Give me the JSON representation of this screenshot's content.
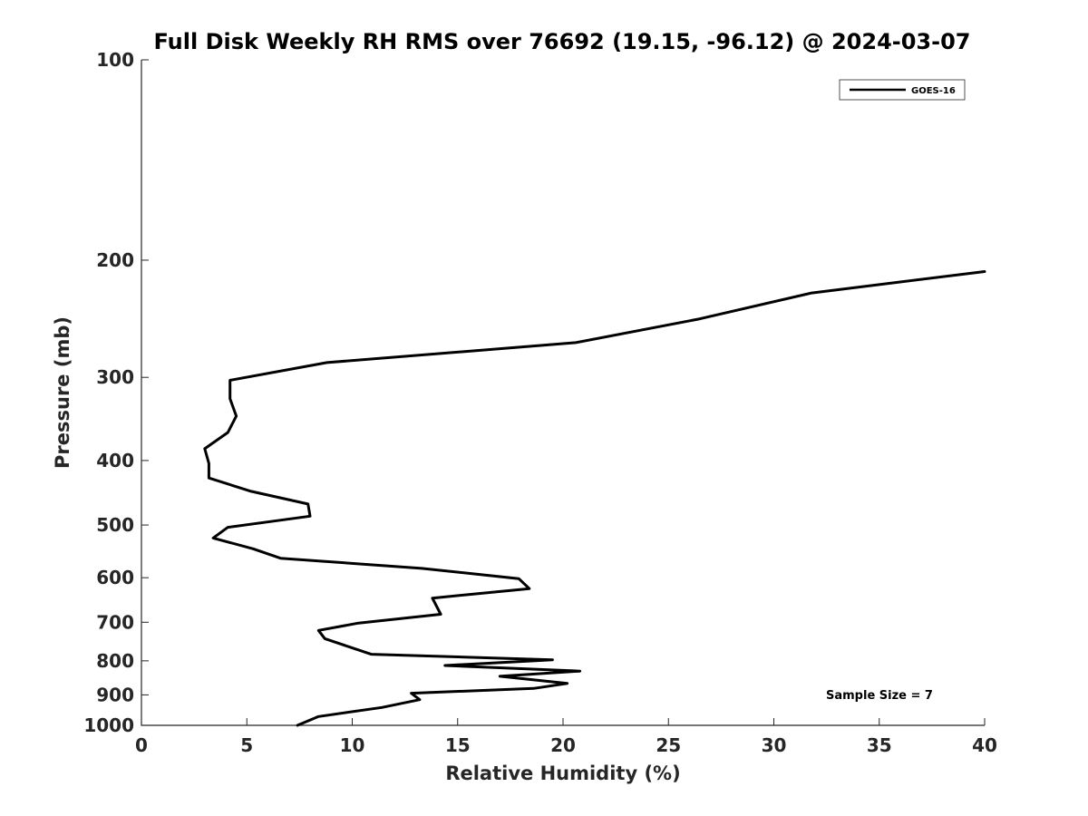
{
  "chart_data": {
    "type": "line",
    "title": "Full Disk Weekly RH RMS over 76692 (19.15, -96.12) @ 2024-03-07",
    "xlabel": "Relative Humidity (%)",
    "ylabel": "Pressure (mb)",
    "xlim": [
      0,
      40
    ],
    "ylim": [
      100,
      1000
    ],
    "y_scale": "log",
    "y_reversed": true,
    "grid": false,
    "x_ticks": [
      "0",
      "5",
      "10",
      "15",
      "20",
      "25",
      "30",
      "35",
      "40"
    ],
    "y_ticks": [
      "100",
      "200",
      "300",
      "400",
      "500",
      "600",
      "700",
      "800",
      "900",
      "1000"
    ],
    "legend": {
      "position": "top-right",
      "entries": [
        "GOES-16"
      ]
    },
    "annotation": "Sample Size = 7",
    "series": [
      {
        "name": "GOES-16",
        "color": "#000000",
        "points": [
          [
            40.0,
            208
          ],
          [
            31.8,
            224
          ],
          [
            26.5,
            245
          ],
          [
            20.6,
            266
          ],
          [
            8.8,
            285
          ],
          [
            4.2,
            303
          ],
          [
            4.2,
            323
          ],
          [
            4.5,
            343
          ],
          [
            4.1,
            363
          ],
          [
            3.0,
            384
          ],
          [
            3.2,
            404
          ],
          [
            3.2,
            425
          ],
          [
            5.2,
            445
          ],
          [
            7.9,
            465
          ],
          [
            8.0,
            485
          ],
          [
            4.1,
            504
          ],
          [
            3.4,
            523
          ],
          [
            5.3,
            543
          ],
          [
            6.6,
            561
          ],
          [
            13.3,
            581
          ],
          [
            17.9,
            602
          ],
          [
            18.4,
            623
          ],
          [
            13.8,
            644
          ],
          [
            14.2,
            681
          ],
          [
            10.3,
            702
          ],
          [
            8.4,
            720
          ],
          [
            8.7,
            741
          ],
          [
            9.9,
            763
          ],
          [
            10.9,
            782
          ],
          [
            19.5,
            797
          ],
          [
            14.4,
            813
          ],
          [
            20.8,
            829
          ],
          [
            17.0,
            844
          ],
          [
            20.2,
            865
          ],
          [
            18.6,
            880
          ],
          [
            12.8,
            895
          ],
          [
            13.2,
            915
          ],
          [
            11.4,
            940
          ],
          [
            8.4,
            970
          ],
          [
            7.4,
            1000
          ]
        ]
      }
    ]
  }
}
